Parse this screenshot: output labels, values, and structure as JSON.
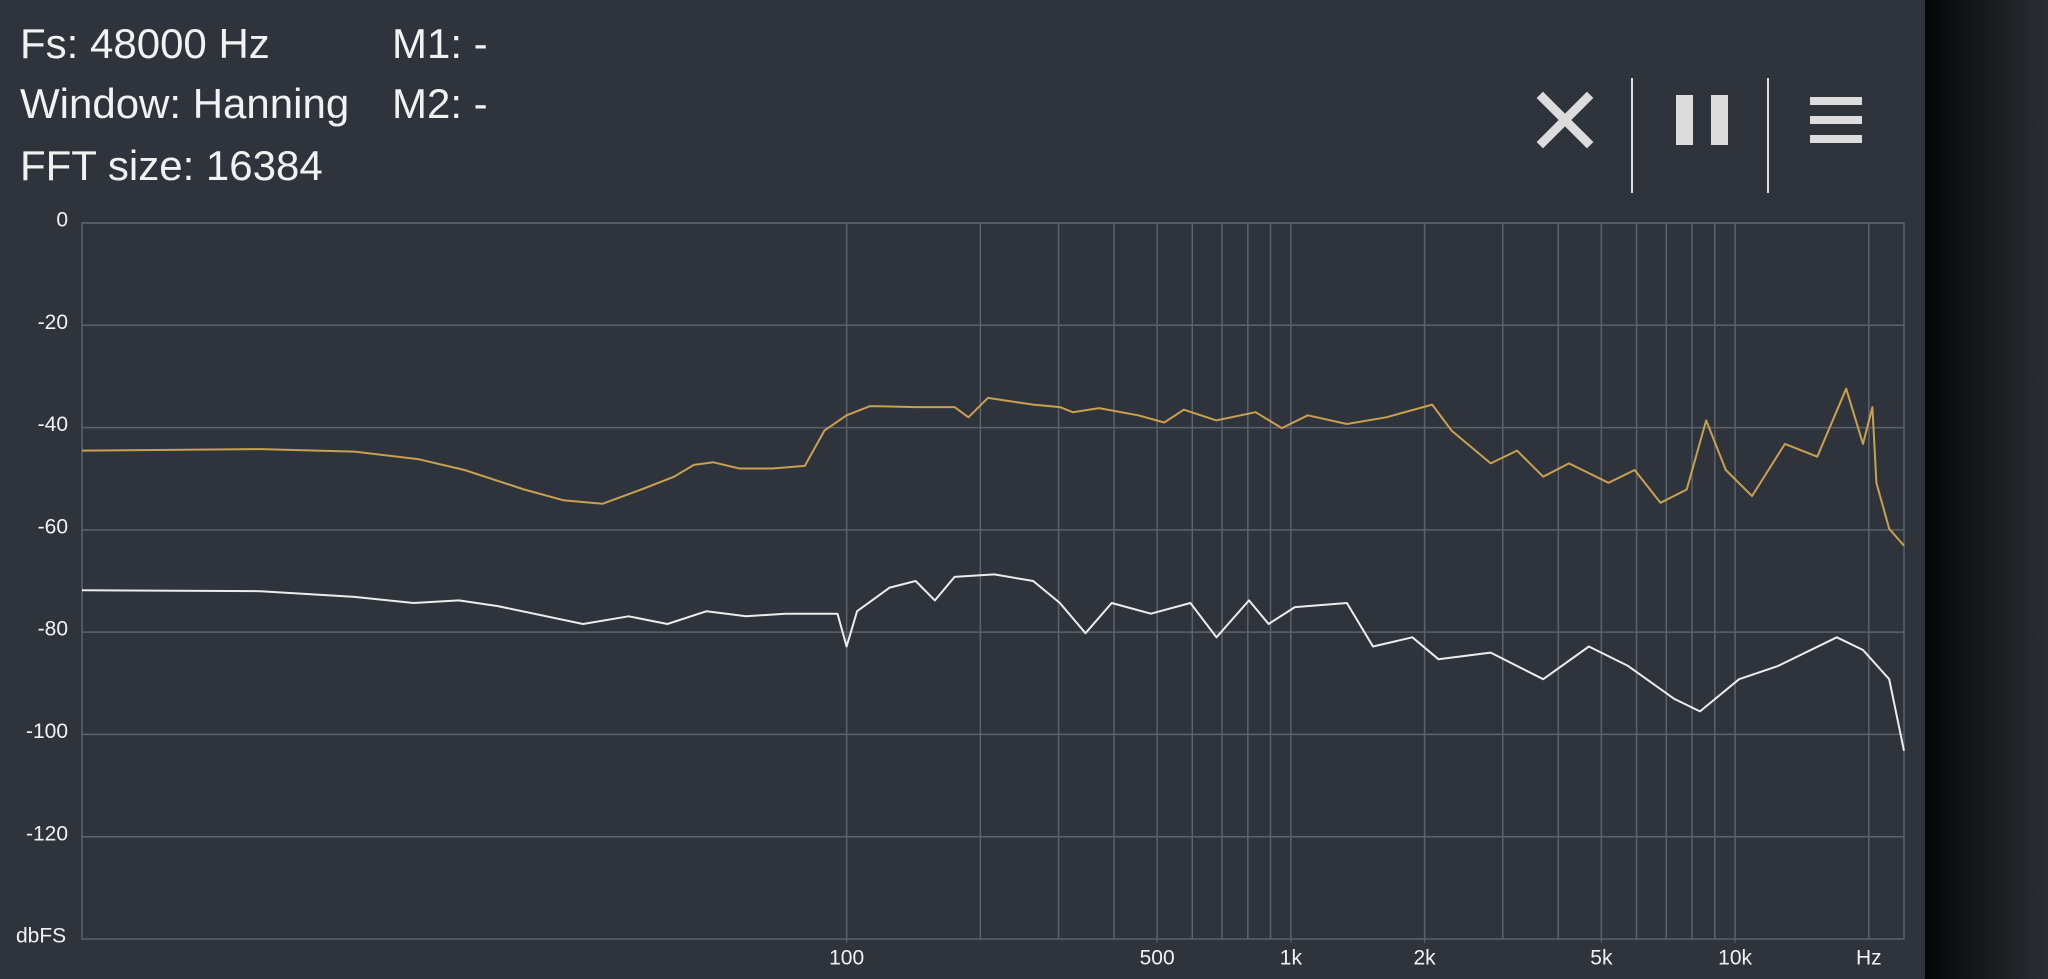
{
  "header": {
    "fs": "Fs: 48000 Hz",
    "window": "Window: Hanning",
    "fft_size": "FFT size: 16384",
    "m1": "M1: -",
    "m2": "M2: -"
  },
  "chart_data": {
    "type": "line",
    "x_label": "Hz",
    "y_label": "dbFS",
    "xscale": "log",
    "grid": true,
    "xlim": [
      1.9,
      24000
    ],
    "ylim": [
      -140,
      0
    ],
    "yticks": [
      0,
      -20,
      -40,
      -60,
      -80,
      -100,
      -120
    ],
    "xticks": [
      100,
      500,
      {
        "value": 1000,
        "label": "1k"
      },
      {
        "value": 2000,
        "label": "2k"
      },
      {
        "value": 5000,
        "label": "5k"
      },
      {
        "value": 10000,
        "label": "10k"
      }
    ],
    "xgrid": [
      100,
      200,
      300,
      400,
      500,
      600,
      700,
      800,
      900,
      1000,
      2000,
      3000,
      4000,
      5000,
      6000,
      7000,
      8000,
      9000,
      10000,
      20000
    ],
    "series": [
      {
        "color": "#c9a04f",
        "x": [
          1.9,
          4.8,
          7.8,
          10.9,
          13.8,
          18.8,
          23.0,
          28.2,
          34.5,
          40.9,
          45.3,
          50.1,
          57.4,
          68,
          80.5,
          89.1,
          100,
          113,
          143,
          175,
          188,
          208,
          263,
          302,
          323,
          370,
          453,
          519,
          574,
          680,
          833,
          954,
          1092,
          1337,
          1640,
          2080,
          2300,
          2818,
          3228,
          3698,
          4227,
          5188,
          5943,
          6792,
          7780,
          8610,
          9528,
          10913,
          12942,
          15311,
          17783,
          19410,
          20370,
          20800,
          22230,
          24000
        ],
        "values": [
          -44.5,
          -44.2,
          -44.7,
          -46.2,
          -48.3,
          -52.1,
          -54.2,
          -54.9,
          -52.1,
          -49.6,
          -47.3,
          -46.8,
          -48,
          -48,
          -47.5,
          -40.6,
          -37.6,
          -35.8,
          -36,
          -36,
          -38,
          -34.2,
          -35.5,
          -36,
          -37,
          -36.2,
          -37.6,
          -39,
          -36.5,
          -38.6,
          -37,
          -40.1,
          -37.6,
          -39.3,
          -38,
          -35.5,
          -40.6,
          -47,
          -44.5,
          -49.6,
          -47,
          -50.8,
          -48.3,
          -54.7,
          -52.1,
          -38.6,
          -48.3,
          -53.4,
          -43.2,
          -45.7,
          -32.4,
          -43.2,
          -36,
          -50.8,
          -59.8,
          -63.1
        ]
      },
      {
        "color": "#ececec",
        "x": [
          1.9,
          4.8,
          7.8,
          10.6,
          13.4,
          16.4,
          25.5,
          32.3,
          39.5,
          48.4,
          59.4,
          72.8,
          95.4,
          100,
          105.6,
          125,
          143,
          158,
          175,
          215,
          263,
          302,
          345,
          395,
          484,
          594,
          680,
          805,
          891,
          1021,
          1337,
          1531,
          1878,
          2148,
          2818,
          3698,
          4688,
          5741,
          7278,
          8337,
          10209,
          12503,
          16943,
          19410,
          22230,
          24000
        ],
        "values": [
          -71.8,
          -72,
          -73.1,
          -74.3,
          -73.8,
          -74.9,
          -78.4,
          -76.9,
          -78.4,
          -75.9,
          -76.9,
          -76.4,
          -76.4,
          -82.8,
          -75.9,
          -71.3,
          -70,
          -73.8,
          -69.2,
          -68.7,
          -70,
          -74.3,
          -80.2,
          -74.3,
          -76.4,
          -74.3,
          -81,
          -73.8,
          -78.4,
          -75.1,
          -74.3,
          -82.8,
          -81,
          -85.3,
          -84,
          -89.2,
          -82.8,
          -86.6,
          -93,
          -95.5,
          -89.2,
          -86.6,
          -81,
          -83.5,
          -89.2,
          -103.2
        ]
      }
    ]
  }
}
